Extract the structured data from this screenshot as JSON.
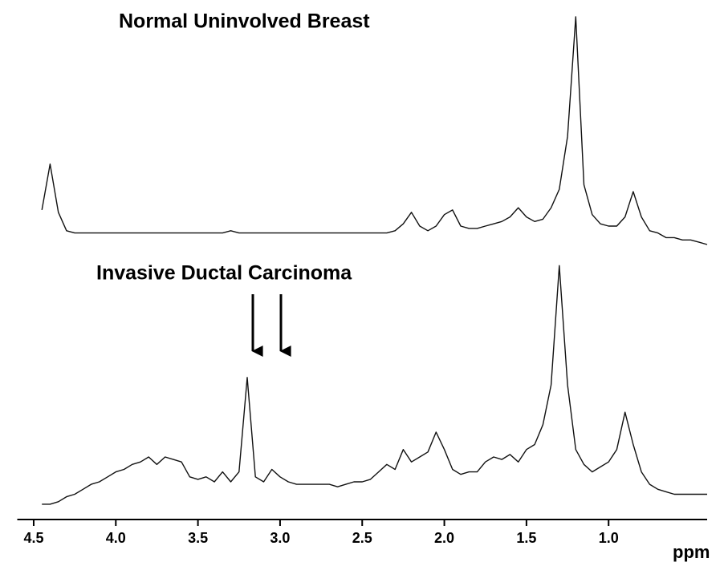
{
  "chart_data": [
    {
      "type": "line",
      "title": "Normal Uninvolved Breast",
      "color": "#111111",
      "xlim": [
        4.6,
        0.4
      ],
      "ylim": [
        0,
        100
      ],
      "x": [
        4.45,
        4.4,
        4.35,
        4.3,
        4.25,
        4.2,
        4.15,
        4.1,
        4.05,
        4.0,
        3.95,
        3.9,
        3.85,
        3.8,
        3.75,
        3.7,
        3.65,
        3.6,
        3.55,
        3.5,
        3.45,
        3.4,
        3.35,
        3.3,
        3.25,
        3.2,
        3.15,
        3.1,
        3.05,
        3.0,
        2.95,
        2.9,
        2.85,
        2.8,
        2.75,
        2.7,
        2.65,
        2.6,
        2.55,
        2.5,
        2.45,
        2.4,
        2.35,
        2.3,
        2.25,
        2.2,
        2.15,
        2.1,
        2.05,
        2.0,
        1.95,
        1.9,
        1.85,
        1.8,
        1.75,
        1.7,
        1.65,
        1.6,
        1.55,
        1.5,
        1.45,
        1.4,
        1.35,
        1.3,
        1.25,
        1.2,
        1.15,
        1.1,
        1.05,
        1.0,
        0.95,
        0.9,
        0.85,
        0.8,
        0.75,
        0.7,
        0.65,
        0.6,
        0.55,
        0.5,
        0.45,
        0.4
      ],
      "values": [
        15,
        35,
        14,
        6,
        5,
        5,
        5,
        5,
        5,
        5,
        5,
        5,
        5,
        5,
        5,
        5,
        5,
        5,
        5,
        5,
        5,
        5,
        5,
        6,
        5,
        5,
        5,
        5,
        5,
        5,
        5,
        5,
        5,
        5,
        5,
        5,
        5,
        5,
        5,
        5,
        5,
        5,
        5,
        6,
        9,
        14,
        8,
        6,
        8,
        13,
        15,
        8,
        7,
        7,
        8,
        9,
        10,
        12,
        16,
        12,
        10,
        11,
        16,
        24,
        47,
        99,
        26,
        13,
        9,
        8,
        8,
        12,
        23,
        12,
        6,
        5,
        3,
        3,
        2,
        2,
        1,
        0
      ]
    },
    {
      "type": "line",
      "title": "Invasive Ductal Carcinoma",
      "color": "#111111",
      "xlim": [
        4.6,
        0.4
      ],
      "ylim": [
        0,
        100
      ],
      "xlabel": "ppm",
      "xticks": [
        4.5,
        {
          "value": 4,
          "label": "4.0"
        },
        3.5,
        {
          "value": 3,
          "label": "3.0"
        },
        2.5,
        {
          "value": 2,
          "label": "2.0"
        },
        1.5,
        {
          "value": 1,
          "label": "1.0"
        }
      ],
      "x": [
        4.45,
        4.4,
        4.35,
        4.3,
        4.25,
        4.2,
        4.15,
        4.1,
        4.05,
        4.0,
        3.95,
        3.9,
        3.85,
        3.8,
        3.75,
        3.7,
        3.65,
        3.6,
        3.55,
        3.5,
        3.45,
        3.4,
        3.35,
        3.3,
        3.25,
        3.2,
        3.15,
        3.1,
        3.05,
        3.0,
        2.95,
        2.9,
        2.85,
        2.8,
        2.75,
        2.7,
        2.65,
        2.6,
        2.55,
        2.5,
        2.45,
        2.4,
        2.35,
        2.3,
        2.25,
        2.2,
        2.15,
        2.1,
        2.05,
        2.0,
        1.95,
        1.9,
        1.85,
        1.8,
        1.75,
        1.7,
        1.65,
        1.6,
        1.55,
        1.5,
        1.45,
        1.4,
        1.35,
        1.3,
        1.25,
        1.2,
        1.15,
        1.1,
        1.05,
        1.0,
        0.95,
        0.9,
        0.85,
        0.8,
        0.75,
        0.7,
        0.65,
        0.6,
        0.55,
        0.5,
        0.45,
        0.4
      ],
      "values": [
        1,
        1,
        2,
        4,
        5,
        7,
        9,
        10,
        12,
        14,
        15,
        17,
        18,
        20,
        17,
        20,
        19,
        18,
        12,
        11,
        12,
        10,
        14,
        10,
        14,
        52,
        12,
        10,
        15,
        12,
        10,
        9,
        9,
        9,
        9,
        9,
        8,
        9,
        10,
        10,
        11,
        14,
        17,
        15,
        23,
        18,
        20,
        22,
        30,
        23,
        15,
        13,
        14,
        14,
        18,
        20,
        19,
        21,
        18,
        23,
        25,
        33,
        49,
        97,
        49,
        23,
        17,
        14,
        16,
        18,
        23,
        38,
        25,
        14,
        9,
        7,
        6,
        5,
        5,
        5,
        5,
        5
      ]
    }
  ]
}
